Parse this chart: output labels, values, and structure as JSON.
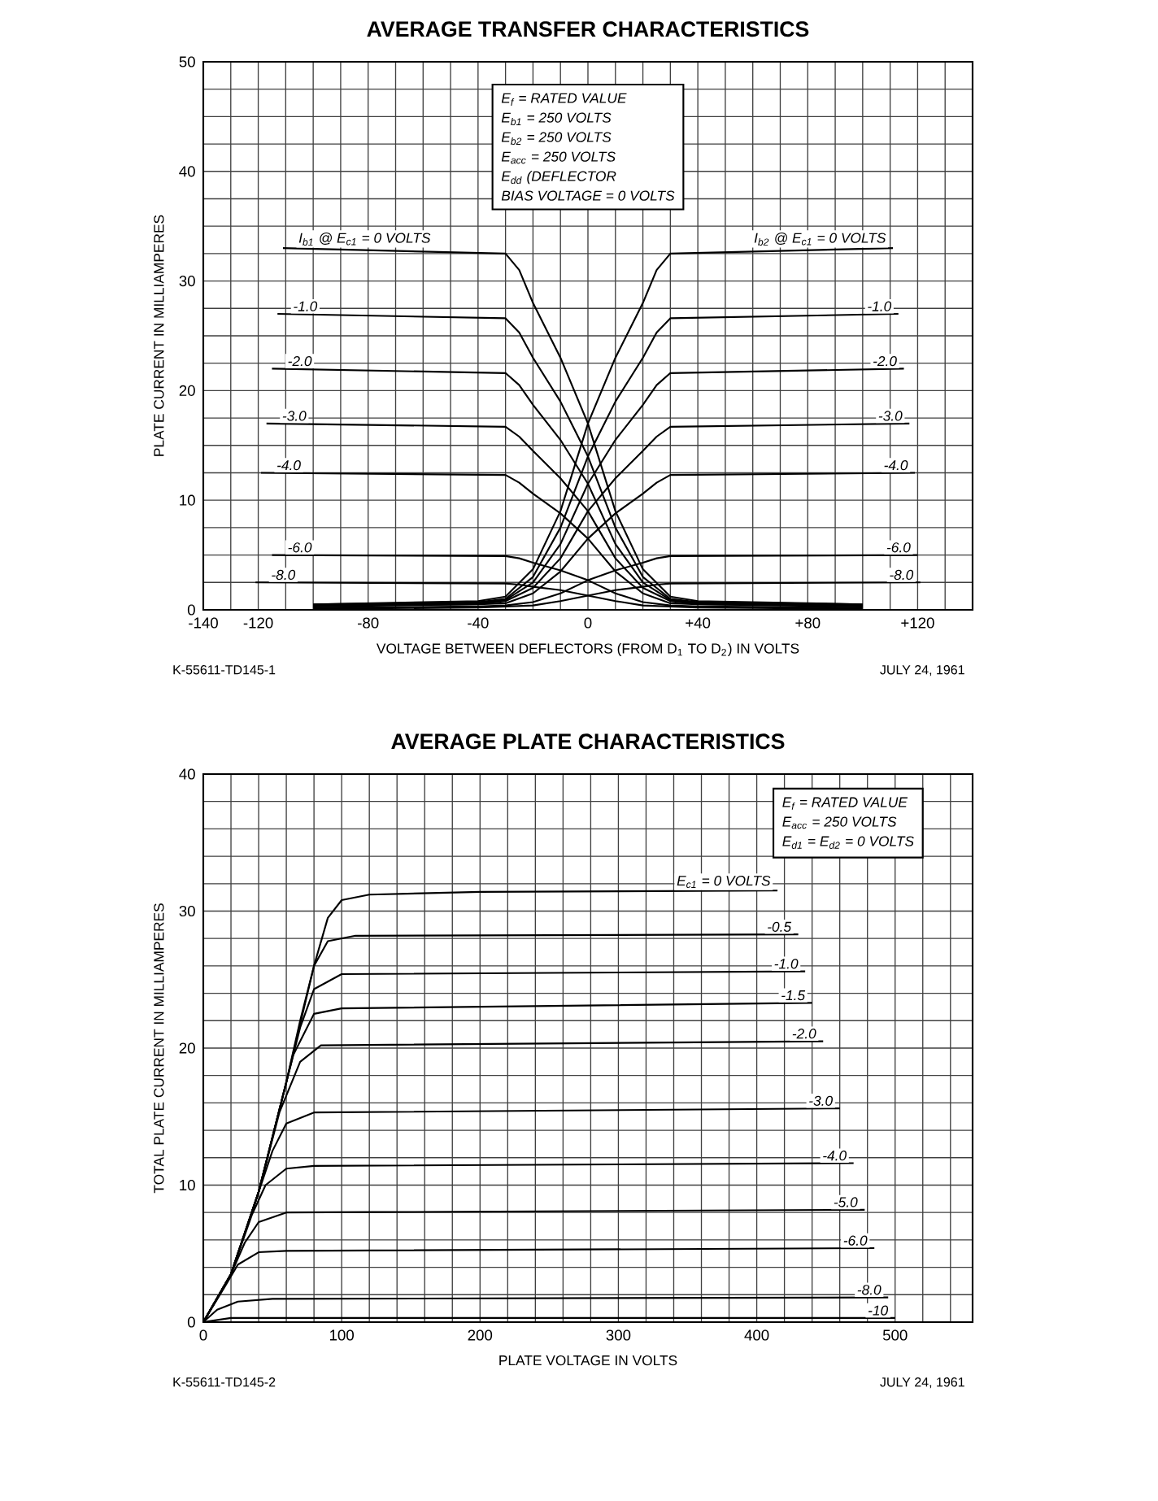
{
  "chart_data": [
    {
      "type": "line",
      "title": "AVERAGE TRANSFER CHARACTERISTICS",
      "xlabel": "VOLTAGE BETWEEN DEFLECTORS (FROM D$_{1}$ TO D$_{2}$) IN VOLTS",
      "ylabel": "PLATE CURRENT IN MILLIAMPERES",
      "xlim": [
        -140,
        140
      ],
      "ylim": [
        0,
        50
      ],
      "grid": true,
      "xticks": [
        -140,
        {
          "value": -130,
          "label": null
        },
        -120,
        {
          "value": -110,
          "label": null
        },
        {
          "value": -100,
          "label": null
        },
        {
          "value": -90,
          "label": null
        },
        -80,
        {
          "value": -70,
          "label": null
        },
        {
          "value": -60,
          "label": null
        },
        {
          "value": -50,
          "label": null
        },
        -40,
        {
          "value": -30,
          "label": null
        },
        {
          "value": -20,
          "label": null
        },
        {
          "value": -10,
          "label": null
        },
        0,
        {
          "value": 10,
          "label": null
        },
        {
          "value": 20,
          "label": null
        },
        {
          "value": 30,
          "label": null
        },
        {
          "value": 40,
          "label": "+40"
        },
        {
          "value": 50,
          "label": null
        },
        {
          "value": 60,
          "label": null
        },
        {
          "value": 70,
          "label": null
        },
        {
          "value": 80,
          "label": "+80"
        },
        {
          "value": 90,
          "label": null
        },
        {
          "value": 100,
          "label": null
        },
        {
          "value": 110,
          "label": null
        },
        {
          "value": 120,
          "label": "+120"
        },
        {
          "value": 130,
          "label": null
        }
      ],
      "yticks": [
        0,
        {
          "value": 2.5,
          "label": null
        },
        {
          "value": 5,
          "label": null
        },
        {
          "value": 7.5,
          "label": null
        },
        10,
        {
          "value": 12.5,
          "label": null
        },
        {
          "value": 15,
          "label": null
        },
        {
          "value": 17.5,
          "label": null
        },
        20,
        {
          "value": 22.5,
          "label": null
        },
        {
          "value": 25,
          "label": null
        },
        {
          "value": 27.5,
          "label": null
        },
        30,
        {
          "value": 32.5,
          "label": null
        },
        {
          "value": 35,
          "label": null
        },
        {
          "value": 37.5,
          "label": null
        },
        40,
        {
          "value": 42.5,
          "label": null
        },
        {
          "value": 45,
          "label": null
        },
        {
          "value": 47.5,
          "label": null
        },
        50
      ],
      "series": [
        {
          "name": "I$_{b1}$ @ E$_{c1}$ = 0 VOLTS",
          "color": "#000000",
          "x": [
            -111,
            -30,
            -25,
            -20,
            -10,
            0,
            10,
            20,
            30,
            40,
            100
          ],
          "values": [
            33,
            32.5,
            31,
            28,
            23,
            17,
            9,
            3.7,
            1.2,
            0.8,
            0.5
          ]
        },
        {
          "name": "-1.0",
          "color": "#000000",
          "x": [
            -113,
            -30,
            -25,
            -20,
            -10,
            0,
            10,
            20,
            30,
            40,
            100
          ],
          "values": [
            27,
            26.6,
            25.3,
            23,
            19,
            14,
            7.5,
            3,
            1,
            0.7,
            0.5
          ]
        },
        {
          "name": "-2.0",
          "color": "#000000",
          "x": [
            -115,
            -30,
            -25,
            -20,
            -10,
            0,
            10,
            20,
            30,
            40,
            100
          ],
          "values": [
            22,
            21.6,
            20.5,
            18.7,
            15.5,
            11.5,
            6,
            2.5,
            0.9,
            0.6,
            0.4
          ]
        },
        {
          "name": "-3.0",
          "color": "#000000",
          "x": [
            -117,
            -30,
            -25,
            -20,
            -10,
            0,
            10,
            20,
            30,
            40,
            100
          ],
          "values": [
            17,
            16.7,
            15.8,
            14.5,
            12,
            9,
            4.7,
            2,
            0.8,
            0.5,
            0.4
          ]
        },
        {
          "name": "-4.0",
          "color": "#000000",
          "x": [
            -119,
            -30,
            -25,
            -20,
            -10,
            0,
            10,
            20,
            30,
            40,
            100
          ],
          "values": [
            12.5,
            12.3,
            11.6,
            10.6,
            8.8,
            6.5,
            3.5,
            1.5,
            0.6,
            0.5,
            0.3
          ]
        },
        {
          "name": "-6.0",
          "color": "#000000",
          "x": [
            -115,
            -30,
            -25,
            -20,
            -10,
            0,
            10,
            20,
            30,
            40,
            100
          ],
          "values": [
            5,
            4.9,
            4.7,
            4.3,
            3.6,
            2.7,
            1.5,
            0.7,
            0.4,
            0.3,
            0.2
          ]
        },
        {
          "name": "-8.0",
          "color": "#000000",
          "x": [
            -121,
            -30,
            -25,
            -20,
            -10,
            0,
            10,
            20,
            30,
            40,
            100
          ],
          "values": [
            2.5,
            2.4,
            2.3,
            2.1,
            1.8,
            1.3,
            0.8,
            0.4,
            0.3,
            0.2,
            0.1
          ]
        },
        {
          "name": "I$_{b2}$ @ E$_{c1}$ = 0 VOLTS",
          "color": "#000000",
          "x": [
            -100,
            -40,
            -30,
            -20,
            -10,
            0,
            10,
            20,
            25,
            30,
            111
          ],
          "values": [
            0.5,
            0.8,
            1.2,
            3.7,
            9,
            17,
            23,
            28,
            31,
            32.5,
            33
          ]
        },
        {
          "name": "-1.0",
          "color": "#000000",
          "x": [
            -100,
            -40,
            -30,
            -20,
            -10,
            0,
            10,
            20,
            25,
            30,
            113
          ],
          "values": [
            0.5,
            0.7,
            1,
            3,
            7.5,
            14,
            19,
            23,
            25.3,
            26.6,
            27
          ]
        },
        {
          "name": "-2.0",
          "color": "#000000",
          "x": [
            -100,
            -40,
            -30,
            -20,
            -10,
            0,
            10,
            20,
            25,
            30,
            115
          ],
          "values": [
            0.4,
            0.6,
            0.9,
            2.5,
            6,
            11.5,
            15.5,
            18.7,
            20.5,
            21.6,
            22
          ]
        },
        {
          "name": "-3.0",
          "color": "#000000",
          "x": [
            -100,
            -40,
            -30,
            -20,
            -10,
            0,
            10,
            20,
            25,
            30,
            117
          ],
          "values": [
            0.4,
            0.5,
            0.8,
            2,
            4.7,
            9,
            12,
            14.5,
            15.8,
            16.7,
            17
          ]
        },
        {
          "name": "-4.0",
          "color": "#000000",
          "x": [
            -100,
            -40,
            -30,
            -20,
            -10,
            0,
            10,
            20,
            25,
            30,
            119
          ],
          "values": [
            0.3,
            0.5,
            0.6,
            1.5,
            3.5,
            6.5,
            8.8,
            10.6,
            11.6,
            12.3,
            12.5
          ]
        },
        {
          "name": "-6.0",
          "color": "#000000",
          "x": [
            -100,
            -40,
            -30,
            -20,
            -10,
            0,
            10,
            20,
            25,
            30,
            120
          ],
          "values": [
            0.2,
            0.3,
            0.4,
            0.7,
            1.5,
            2.7,
            3.6,
            4.3,
            4.7,
            4.9,
            5
          ]
        },
        {
          "name": "-8.0",
          "color": "#000000",
          "x": [
            -100,
            -40,
            -30,
            -20,
            -10,
            0,
            10,
            20,
            25,
            30,
            121
          ],
          "values": [
            0.1,
            0.2,
            0.3,
            0.4,
            0.8,
            1.3,
            1.8,
            2.1,
            2.3,
            2.4,
            2.5
          ]
        }
      ],
      "annotations": [
        "E$_{f}$ = RATED VALUE",
        "E$_{b1}$ = 250 VOLTS",
        "E$_{b2}$ = 250 VOLTS",
        "E$_{acc}$ = 250 VOLTS",
        "E$_{dd}$ (DEFLECTOR",
        "BIAS VOLTAGE = 0 VOLTS",
        "K-55611-TD145-1",
        "JULY 24, 1961"
      ]
    },
    {
      "type": "line",
      "title": "AVERAGE PLATE CHARACTERISTICS",
      "xlabel": "PLATE VOLTAGE IN VOLTS",
      "ylabel": "TOTAL PLATE CURRENT IN MILLIAMPERES",
      "xlim": [
        0,
        556
      ],
      "ylim": [
        0,
        40
      ],
      "grid": true,
      "xticks": [
        0,
        {
          "value": 20,
          "label": null
        },
        {
          "value": 40,
          "label": null
        },
        {
          "value": 60,
          "label": null
        },
        {
          "value": 80,
          "label": null
        },
        100,
        {
          "value": 120,
          "label": null
        },
        {
          "value": 140,
          "label": null
        },
        {
          "value": 160,
          "label": null
        },
        {
          "value": 180,
          "label": null
        },
        200,
        {
          "value": 220,
          "label": null
        },
        {
          "value": 240,
          "label": null
        },
        {
          "value": 260,
          "label": null
        },
        {
          "value": 280,
          "label": null
        },
        300,
        {
          "value": 320,
          "label": null
        },
        {
          "value": 340,
          "label": null
        },
        {
          "value": 360,
          "label": null
        },
        {
          "value": 380,
          "label": null
        },
        400,
        {
          "value": 420,
          "label": null
        },
        {
          "value": 440,
          "label": null
        },
        {
          "value": 460,
          "label": null
        },
        {
          "value": 480,
          "label": null
        },
        500,
        {
          "value": 520,
          "label": null
        },
        {
          "value": 540,
          "label": null
        }
      ],
      "yticks": [
        0,
        {
          "value": 2,
          "label": null
        },
        {
          "value": 4,
          "label": null
        },
        {
          "value": 6,
          "label": null
        },
        {
          "value": 8,
          "label": null
        },
        10,
        {
          "value": 12,
          "label": null
        },
        {
          "value": 14,
          "label": null
        },
        {
          "value": 16,
          "label": null
        },
        {
          "value": 18,
          "label": null
        },
        20,
        {
          "value": 22,
          "label": null
        },
        {
          "value": 24,
          "label": null
        },
        {
          "value": 26,
          "label": null
        },
        {
          "value": 28,
          "label": null
        },
        30,
        {
          "value": 32,
          "label": null
        },
        {
          "value": 34,
          "label": null
        },
        {
          "value": 36,
          "label": null
        },
        {
          "value": 38,
          "label": null
        },
        40
      ],
      "series": [
        {
          "name": "E$_{c1}$ = 0 VOLTS",
          "color": "#000000",
          "x": [
            0,
            20,
            40,
            60,
            80,
            90,
            100,
            120,
            200,
            415
          ],
          "values": [
            0,
            3.5,
            9.5,
            17.5,
            26,
            29.5,
            30.8,
            31.2,
            31.4,
            31.5
          ]
        },
        {
          "name": "-0.5",
          "color": "#000000",
          "x": [
            0,
            20,
            40,
            60,
            70,
            80,
            90,
            110,
            430
          ],
          "values": [
            0,
            3.5,
            9.5,
            17.5,
            22,
            26,
            27.8,
            28.2,
            28.3
          ]
        },
        {
          "name": "-1.0",
          "color": "#000000",
          "x": [
            0,
            20,
            40,
            60,
            70,
            80,
            100,
            435
          ],
          "values": [
            0,
            3.5,
            9.5,
            17.5,
            21.5,
            24.3,
            25.4,
            25.6
          ]
        },
        {
          "name": "-1.5",
          "color": "#000000",
          "x": [
            0,
            20,
            40,
            55,
            65,
            80,
            100,
            440
          ],
          "values": [
            0,
            3.5,
            9.5,
            15.5,
            19.5,
            22.5,
            22.9,
            23.3
          ]
        },
        {
          "name": "-2.0",
          "color": "#000000",
          "x": [
            0,
            20,
            40,
            55,
            70,
            85,
            448
          ],
          "values": [
            0,
            3.5,
            9.5,
            15.3,
            19,
            20.2,
            20.5
          ]
        },
        {
          "name": "-3.0",
          "color": "#000000",
          "x": [
            0,
            20,
            40,
            50,
            60,
            80,
            460
          ],
          "values": [
            0,
            3.5,
            9.5,
            12.5,
            14.5,
            15.3,
            15.6
          ]
        },
        {
          "name": "-4.0",
          "color": "#000000",
          "x": [
            0,
            20,
            35,
            45,
            60,
            80,
            470
          ],
          "values": [
            0,
            3.5,
            7.8,
            10,
            11.2,
            11.4,
            11.6
          ]
        },
        {
          "name": "-5.0",
          "color": "#000000",
          "x": [
            0,
            20,
            30,
            40,
            60,
            478
          ],
          "values": [
            0,
            3.5,
            5.8,
            7.3,
            8,
            8.2
          ]
        },
        {
          "name": "-6.0",
          "color": "#000000",
          "x": [
            0,
            15,
            25,
            40,
            60,
            485
          ],
          "values": [
            0,
            2.5,
            4.2,
            5.1,
            5.2,
            5.4
          ]
        },
        {
          "name": "-8.0",
          "color": "#000000",
          "x": [
            0,
            10,
            25,
            50,
            495
          ],
          "values": [
            0,
            0.9,
            1.5,
            1.7,
            1.8
          ]
        },
        {
          "name": "-10",
          "color": "#000000",
          "x": [
            0,
            20,
            500
          ],
          "values": [
            0,
            0.3,
            0.3
          ]
        }
      ],
      "annotations": [
        "E$_{f}$ = RATED VALUE",
        "E$_{acc}$ = 250 VOLTS",
        "E$_{d1}$ = E$_{d2}$ = 0 VOLTS",
        "K-55611-TD145-2",
        "JULY 24, 1961"
      ]
    }
  ]
}
